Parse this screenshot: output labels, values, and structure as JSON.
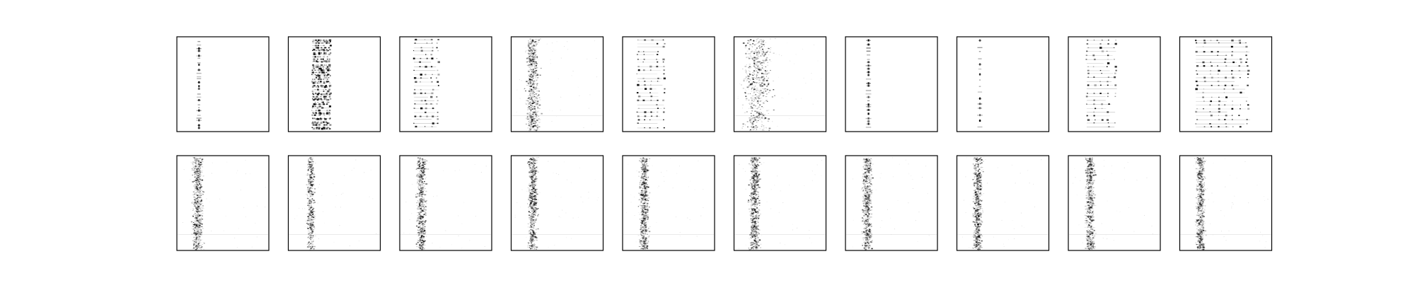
{
  "chart_data": {
    "type": "heatmap",
    "layout": {
      "rows": 2,
      "cols": 10
    },
    "colormap": "gray_r",
    "axis_ticks": "none",
    "axis_labels": "none",
    "title": "",
    "panels": [
      {
        "row": 0,
        "col": 0,
        "pattern": "narrow-dotted-column",
        "column_center": 0.24,
        "band_width": 0.03,
        "density": 0.35
      },
      {
        "row": 0,
        "col": 1,
        "pattern": "dense-banded-columns",
        "column_center": 0.35,
        "band_width": 0.18,
        "density": 0.75
      },
      {
        "row": 0,
        "col": 2,
        "pattern": "sparse-horizontal-streaks",
        "column_center": 0.28,
        "band_width": 0.25,
        "density": 0.45
      },
      {
        "row": 0,
        "col": 3,
        "pattern": "noisy-left-column",
        "column_center": 0.23,
        "band_width": 0.1,
        "density": 0.8
      },
      {
        "row": 0,
        "col": 4,
        "pattern": "streaks-with-dots",
        "column_center": 0.3,
        "band_width": 0.28,
        "density": 0.55
      },
      {
        "row": 0,
        "col": 5,
        "pattern": "broad-noise-column",
        "column_center": 0.25,
        "band_width": 0.22,
        "density": 0.7
      },
      {
        "row": 0,
        "col": 6,
        "pattern": "narrow-dotted-column",
        "column_center": 0.25,
        "band_width": 0.03,
        "density": 0.4
      },
      {
        "row": 0,
        "col": 7,
        "pattern": "narrow-sparse-column",
        "column_center": 0.25,
        "band_width": 0.02,
        "density": 0.25
      },
      {
        "row": 0,
        "col": 8,
        "pattern": "dotted-multi-columns",
        "column_center": 0.35,
        "band_width": 0.3,
        "density": 0.55
      },
      {
        "row": 0,
        "col": 9,
        "pattern": "regular-dot-grid",
        "column_center": 0.45,
        "band_width": 0.55,
        "density": 0.5
      },
      {
        "row": 1,
        "col": 0,
        "pattern": "noisy-left-column",
        "column_center": 0.22,
        "band_width": 0.08,
        "density": 0.85
      },
      {
        "row": 1,
        "col": 1,
        "pattern": "noisy-left-column",
        "column_center": 0.24,
        "band_width": 0.06,
        "density": 0.6
      },
      {
        "row": 1,
        "col": 2,
        "pattern": "noisy-left-column",
        "column_center": 0.23,
        "band_width": 0.07,
        "density": 0.8
      },
      {
        "row": 1,
        "col": 3,
        "pattern": "noisy-left-column",
        "column_center": 0.23,
        "band_width": 0.07,
        "density": 0.8
      },
      {
        "row": 1,
        "col": 4,
        "pattern": "noisy-left-column",
        "column_center": 0.23,
        "band_width": 0.07,
        "density": 0.8
      },
      {
        "row": 1,
        "col": 5,
        "pattern": "noisy-left-column",
        "column_center": 0.22,
        "band_width": 0.08,
        "density": 0.85
      },
      {
        "row": 1,
        "col": 6,
        "pattern": "noisy-left-column",
        "column_center": 0.23,
        "band_width": 0.07,
        "density": 0.8
      },
      {
        "row": 1,
        "col": 7,
        "pattern": "noisy-left-column",
        "column_center": 0.22,
        "band_width": 0.07,
        "density": 0.8
      },
      {
        "row": 1,
        "col": 8,
        "pattern": "noisy-left-column",
        "column_center": 0.23,
        "band_width": 0.07,
        "density": 0.8
      },
      {
        "row": 1,
        "col": 9,
        "pattern": "noisy-left-column",
        "column_center": 0.22,
        "band_width": 0.07,
        "density": 0.8
      }
    ]
  }
}
